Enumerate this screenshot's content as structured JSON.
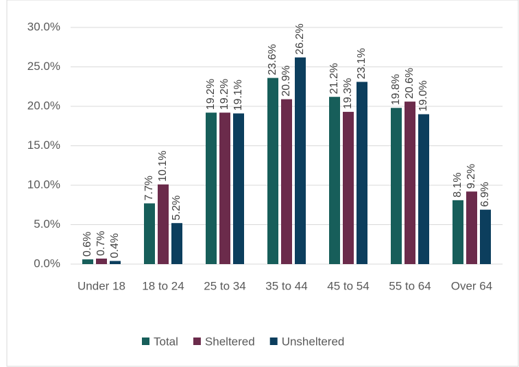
{
  "chart_data": {
    "type": "bar",
    "categories": [
      "Under 18",
      "18 to 24",
      "25 to 34",
      "35 to 44",
      "45 to 54",
      "55 to 64",
      "Over 64"
    ],
    "series": [
      {
        "name": "Total",
        "color": "#175e5a",
        "values": [
          0.6,
          7.7,
          19.2,
          23.6,
          21.2,
          19.8,
          8.1
        ],
        "value_labels": [
          "0.6%",
          "7.7%",
          "19.2%",
          "23.6%",
          "21.2%",
          "19.8%",
          "8.1%"
        ]
      },
      {
        "name": "Sheltered",
        "color": "#6b2b4b",
        "values": [
          0.7,
          10.1,
          19.2,
          20.9,
          19.3,
          20.6,
          9.2
        ],
        "value_labels": [
          "0.7%",
          "10.1%",
          "19.2%",
          "20.9%",
          "19.3%",
          "20.6%",
          "9.2%"
        ]
      },
      {
        "name": "Unsheltered",
        "color": "#0c3e5d",
        "values": [
          0.4,
          5.2,
          19.1,
          26.2,
          23.1,
          19.0,
          6.9
        ],
        "value_labels": [
          "0.4%",
          "5.2%",
          "19.1%",
          "26.2%",
          "23.1%",
          "19.0%",
          "6.9%"
        ]
      }
    ],
    "ylim": [
      0,
      30
    ],
    "yticks": [
      {
        "value": 0,
        "label": "0.0%"
      },
      {
        "value": 5,
        "label": "5.0%"
      },
      {
        "value": 10,
        "label": "10.0%"
      },
      {
        "value": 15,
        "label": "15.0%"
      },
      {
        "value": 20,
        "label": "20.0%"
      },
      {
        "value": 25,
        "label": "25.0%"
      },
      {
        "value": 30,
        "label": "30.0%"
      }
    ],
    "grid": true,
    "legend": "bottom"
  }
}
